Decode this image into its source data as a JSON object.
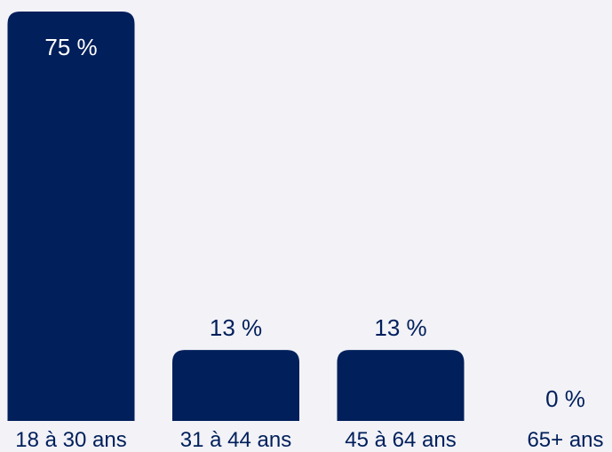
{
  "chart_data": {
    "type": "bar",
    "categories": [
      "18 à 30 ans",
      "31 à 44 ans",
      "45 à 64 ans",
      "65+ ans"
    ],
    "values": [
      75,
      13,
      13,
      0
    ],
    "value_labels": [
      "75 %",
      "13 %",
      "13 %",
      "0 %"
    ],
    "title": "",
    "xlabel": "",
    "ylabel": "",
    "ylim": [
      0,
      75
    ],
    "grid": false,
    "legend": "none",
    "bar_color": "#001f5b",
    "background_color": "#f2f2f7"
  }
}
